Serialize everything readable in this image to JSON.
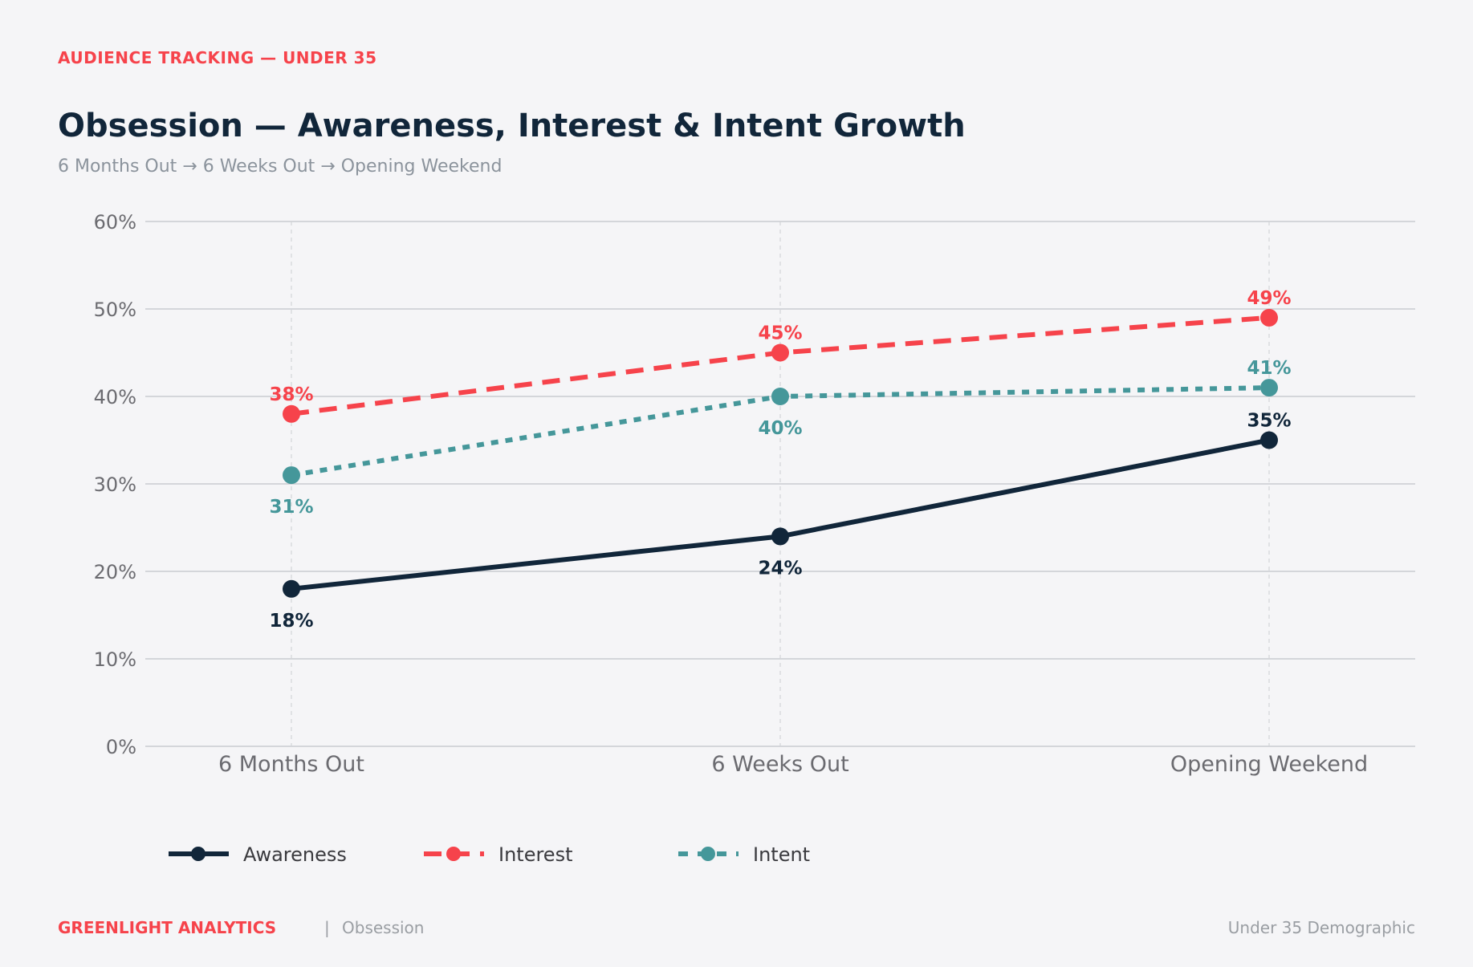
{
  "header": {
    "eyebrow": "AUDIENCE TRACKING — UNDER 35",
    "title": "Obsession — Awareness, Interest & Intent Growth",
    "subtitle": "6 Months Out  →  6 Weeks Out  →  Opening Weekend"
  },
  "footer": {
    "brand": "GREENLIGHT ANALYTICS",
    "separator": "|",
    "film": "Obsession",
    "right": "Under 35 Demographic"
  },
  "colors": {
    "awareness": "#11263a",
    "interest": "#f6434b",
    "intent": "#45979a",
    "grid": "#c9cbd1",
    "tick": "#6b6b70"
  },
  "chart_data": {
    "type": "line",
    "categories": [
      "6 Months Out",
      "6 Weeks Out",
      "Opening Weekend"
    ],
    "ylim": [
      0,
      60
    ],
    "yticks": [
      0,
      10,
      20,
      30,
      40,
      50,
      60
    ],
    "y_tick_labels": [
      "0%",
      "10%",
      "20%",
      "30%",
      "40%",
      "50%",
      "60%"
    ],
    "grid": true,
    "legend_position": "bottom-left",
    "series": [
      {
        "name": "Awareness",
        "values": [
          18,
          24,
          35
        ],
        "labels": [
          "18%",
          "24%",
          "35%"
        ],
        "color": "#11263a",
        "line_style": "solid",
        "label_placement": [
          "below",
          "below",
          "above"
        ]
      },
      {
        "name": "Interest",
        "values": [
          38,
          45,
          49
        ],
        "labels": [
          "38%",
          "45%",
          "49%"
        ],
        "color": "#f6434b",
        "line_style": "dashed",
        "label_placement": [
          "above",
          "above",
          "above"
        ]
      },
      {
        "name": "Intent",
        "values": [
          31,
          40,
          41
        ],
        "labels": [
          "31%",
          "40%",
          "41%"
        ],
        "color": "#45979a",
        "line_style": "dotted",
        "label_placement": [
          "below",
          "below",
          "above"
        ]
      }
    ]
  }
}
